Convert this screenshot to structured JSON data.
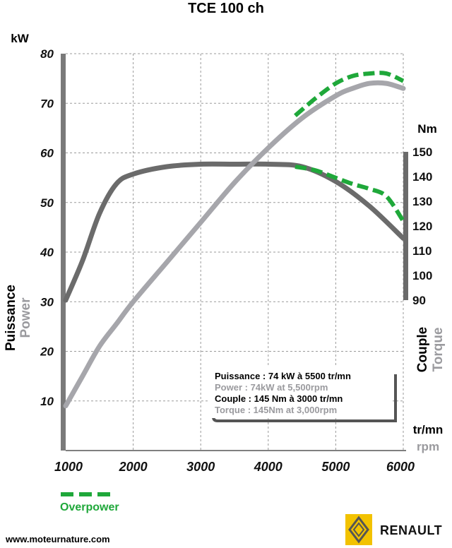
{
  "chart_data": {
    "type": "line",
    "title": "TCE 100 ch",
    "x": [
      1000,
      1500,
      2000,
      2500,
      3000,
      3500,
      4000,
      4500,
      5000,
      5500,
      6000
    ],
    "xlim": [
      1000,
      6000
    ],
    "x_ticks": [
      "1000",
      "2000",
      "3000",
      "4000",
      "5000",
      "6000"
    ],
    "x_unit": "tr/mn",
    "x_unit_en": "rpm",
    "left_axis": {
      "unit": "kW",
      "ylim": [
        0,
        80
      ],
      "ticks": [
        "10",
        "20",
        "30",
        "40",
        "50",
        "60",
        "70",
        "80"
      ],
      "label": "Puissance",
      "label_en": "Power"
    },
    "right_axis": {
      "unit": "Nm",
      "ylim": [
        90,
        150
      ],
      "ticks": [
        "90",
        "100",
        "110",
        "120",
        "130",
        "140",
        "150"
      ],
      "label": "Couple",
      "label_en": "Torque"
    },
    "series": [
      {
        "axis": "left",
        "color": "#a6a6ab",
        "x": [
          1000,
          1250,
          1500,
          1750,
          2000,
          2500,
          3000,
          3500,
          4000,
          4500,
          5000,
          5250,
          5500,
          5750,
          6000
        ],
        "values": [
          9,
          15,
          21,
          25.5,
          30,
          38,
          46,
          54,
          61,
          67,
          71.5,
          73,
          74,
          74,
          73
        ]
      },
      {
        "axis": "right",
        "color": "#6b6b6b",
        "x": [
          1000,
          1250,
          1500,
          1750,
          2000,
          2500,
          3000,
          3500,
          4000,
          4500,
          5000,
          5500,
          6000
        ],
        "values": [
          90,
          106,
          125,
          137,
          141,
          144,
          145,
          145,
          145,
          144,
          138,
          128,
          115
        ]
      },
      {
        "name": "Overpower",
        "axis": "left",
        "color": "#1fa83a",
        "dashed": true,
        "x": [
          4400,
          4700,
          5000,
          5250,
          5500,
          5750,
          6000
        ],
        "values": [
          67.5,
          71,
          74,
          75.5,
          76,
          76,
          74.5
        ]
      },
      {
        "name": "Overpower",
        "axis": "right",
        "color": "#1fa83a",
        "dashed": true,
        "x": [
          4400,
          4700,
          5000,
          5250,
          5500,
          5750,
          6000
        ],
        "values": [
          144,
          142.5,
          139.5,
          137,
          135,
          132,
          122
        ]
      }
    ],
    "legend_box": [
      {
        "text": "Puissance : 74 kW à 5500 tr/mn",
        "color": "#000000"
      },
      {
        "text": "Power : 74kW at 5,500rpm",
        "color": "#9a9a9e"
      },
      {
        "text": "Couple : 145 Nm à 3000 tr/mn",
        "color": "#000000"
      },
      {
        "text": "Torque : 145Nm at 3,000rpm",
        "color": "#9a9a9e"
      }
    ],
    "overpower_label": "Overpower",
    "grid": true,
    "grid_style": "dashed"
  },
  "footer": {
    "website": "www.moteurnature.com",
    "brand": "RENAULT"
  },
  "colors": {
    "power": "#a6a6ab",
    "torque": "#6b6b6b",
    "overpower": "#1fa83a",
    "axis_bar": "#7a7a7a",
    "grid": "#9a9a9a",
    "logo_yellow": "#f2c200"
  },
  "icons": {
    "logo": "renault-diamond-logo"
  }
}
